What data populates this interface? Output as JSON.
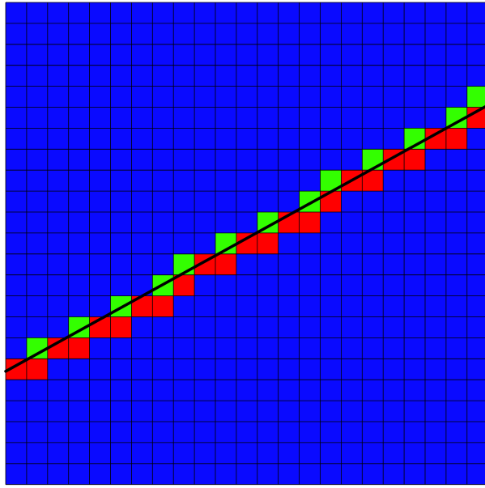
{
  "grid": {
    "columns": 23,
    "rows": 23,
    "colors": {
      "background_cell": "#0a0aff",
      "red_cell": "#ff0000",
      "green_cell": "#33ff00",
      "grid_line": "#000000",
      "line": "#000000",
      "canvas": "#ffffff"
    },
    "line": {
      "from": [
        0,
        17.6
      ],
      "to": [
        23,
        4.9
      ]
    },
    "red_cells": [
      [
        0,
        17
      ],
      [
        1,
        17
      ],
      [
        2,
        16
      ],
      [
        3,
        16
      ],
      [
        4,
        15
      ],
      [
        5,
        15
      ],
      [
        6,
        14
      ],
      [
        7,
        14
      ],
      [
        8,
        13
      ],
      [
        9,
        12
      ],
      [
        10,
        12
      ],
      [
        11,
        11
      ],
      [
        12,
        11
      ],
      [
        13,
        10
      ],
      [
        14,
        10
      ],
      [
        15,
        9
      ],
      [
        16,
        8
      ],
      [
        17,
        8
      ],
      [
        18,
        7
      ],
      [
        19,
        7
      ],
      [
        20,
        6
      ],
      [
        21,
        6
      ],
      [
        22,
        5
      ]
    ],
    "green_cells": [
      [
        1,
        16
      ],
      [
        3,
        15
      ],
      [
        5,
        14
      ],
      [
        7,
        13
      ],
      [
        8,
        12
      ],
      [
        10,
        11
      ],
      [
        12,
        10
      ],
      [
        14,
        9
      ],
      [
        15,
        8
      ],
      [
        17,
        7
      ],
      [
        19,
        6
      ],
      [
        21,
        5
      ],
      [
        22,
        4
      ]
    ]
  }
}
